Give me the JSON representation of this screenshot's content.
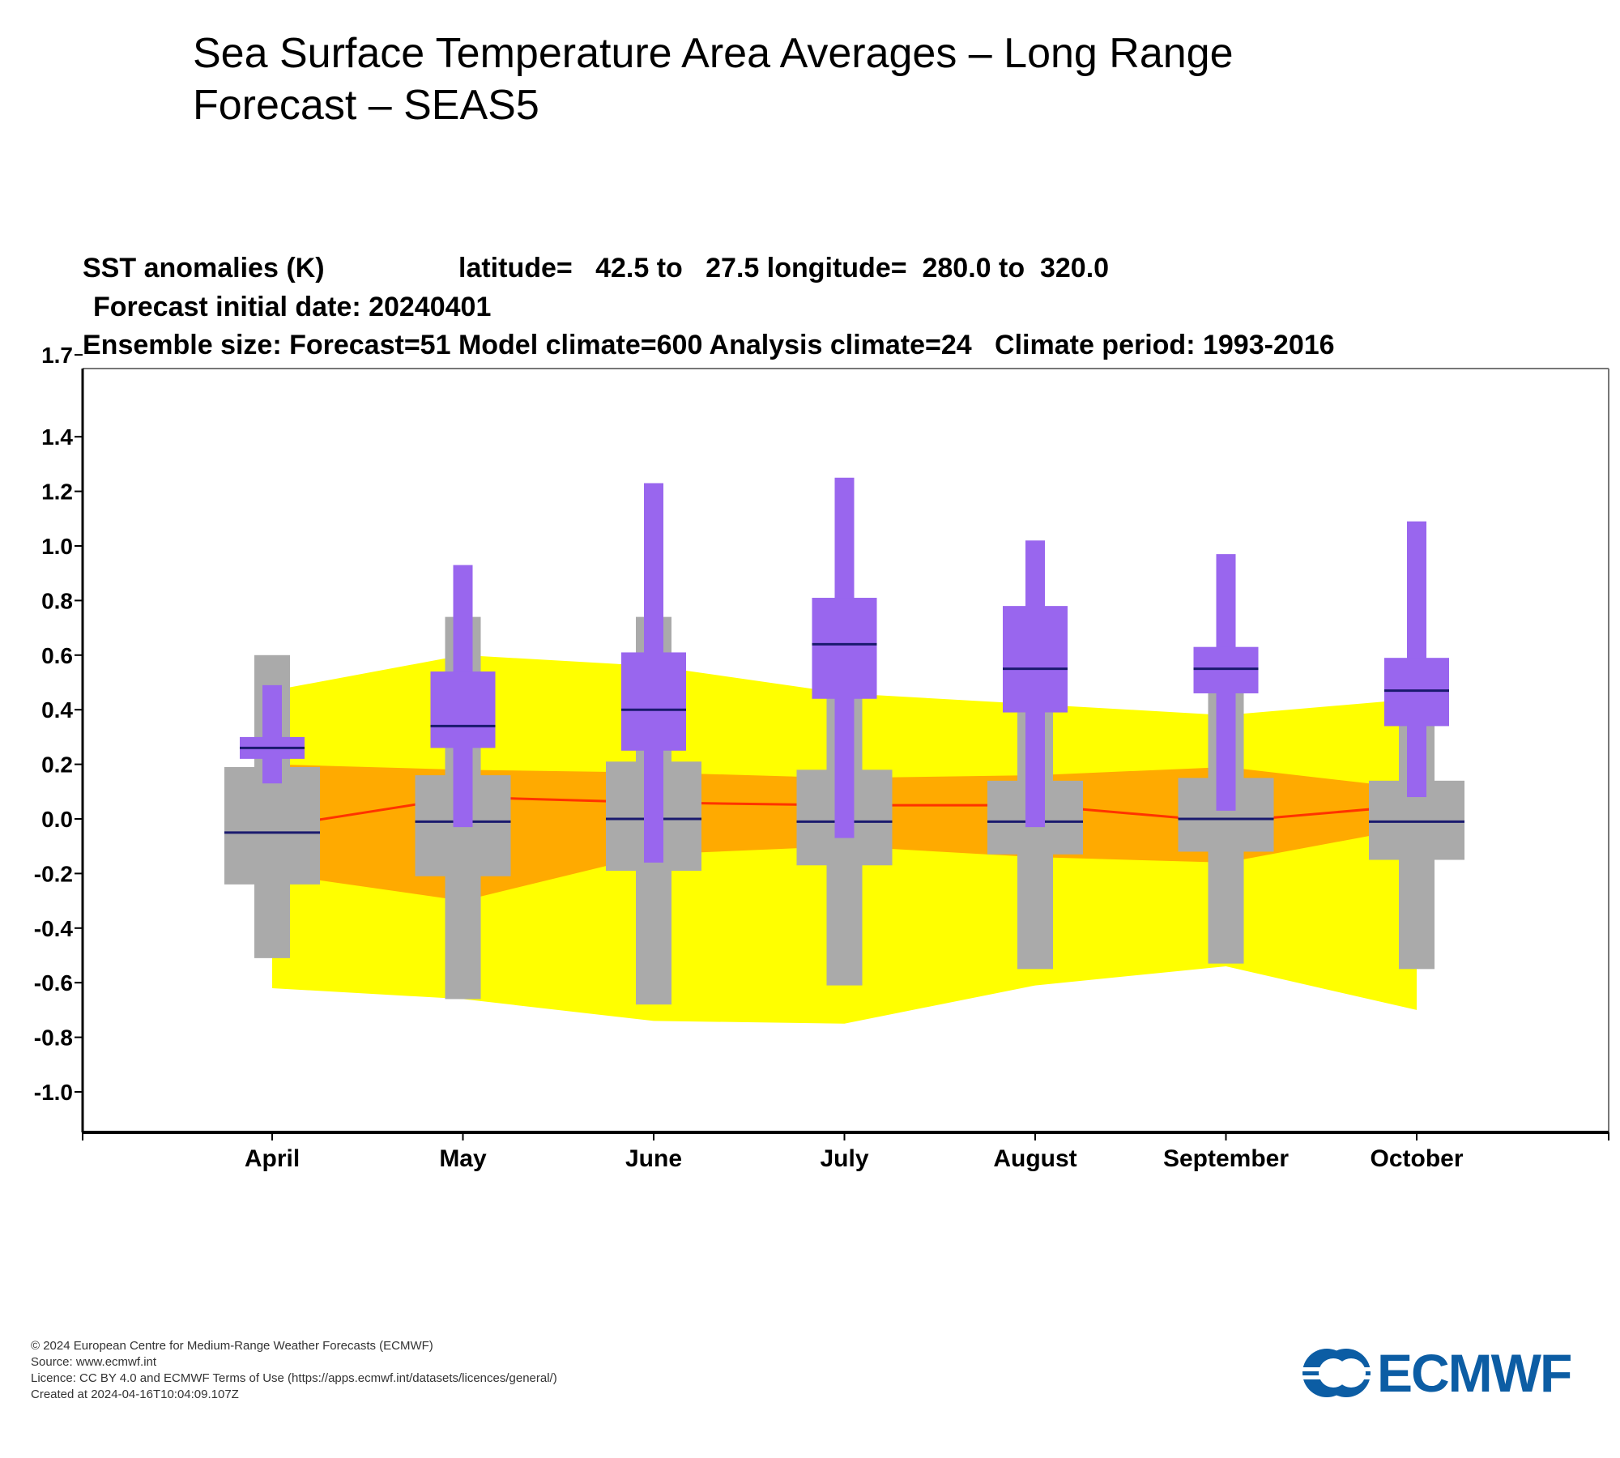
{
  "title": "Sea Surface Temperature Area Averages – Long Range Forecast – SEAS5",
  "header": {
    "line1_var": "SST anomalies (K)",
    "line1_region": "latitude=   42.5 to   27.5 longitude=  280.0 to  320.0",
    "line2": "Forecast initial date: 20240401",
    "line3": "Ensemble size: Forecast=51 Model climate=600 Analysis climate=24   Climate period: 1993-2016"
  },
  "footer": {
    "copyright": "© 2024 European Centre for Medium-Range Weather Forecasts (ECMWF)",
    "source": "Source: www.ecmwf.int",
    "licence": "Licence: CC BY 4.0 and ECMWF Terms of Use (https://apps.ecmwf.int/datasets/licences/general/)",
    "created": "Created at 2024-04-16T10:04:09.107Z"
  },
  "logo": {
    "text": "ECMWF",
    "color": "#0c5da4",
    "icon": "ecmwf-logo-icon"
  },
  "colors": {
    "forecast": "#9966ee",
    "model_climate": "#aaaaaa",
    "analysis_outer": "#ffff00",
    "analysis_inner": "#ffaa00",
    "analysis_median": "#ff3300",
    "median_line": "#1a1a6e"
  },
  "chart_data": {
    "type": "box",
    "ylabel": "",
    "xlabel": "",
    "ylim": [
      -1.15,
      1.75
    ],
    "yticks": [
      "1.7",
      "1.4",
      "1.2",
      "1.0",
      "0.8",
      "0.6",
      "0.4",
      "0.2",
      "0.0",
      "-0.2",
      "-0.4",
      "-0.6",
      "-0.8",
      "-1.0"
    ],
    "ytick_values": [
      1.7,
      1.4,
      1.2,
      1.0,
      0.8,
      0.6,
      0.4,
      0.2,
      0.0,
      -0.2,
      -0.4,
      -0.6,
      -0.8,
      -1.0
    ],
    "categories": [
      "April",
      "May",
      "June",
      "July",
      "August",
      "September",
      "October"
    ],
    "analysis_climate": {
      "outer_upper": [
        0.47,
        0.6,
        0.56,
        0.46,
        0.42,
        0.38,
        0.44
      ],
      "outer_lower": [
        -0.62,
        -0.66,
        -0.74,
        -0.75,
        -0.61,
        -0.54,
        -0.7
      ],
      "inner_upper": [
        0.2,
        0.18,
        0.17,
        0.15,
        0.16,
        0.19,
        0.11
      ],
      "inner_lower": [
        -0.2,
        -0.3,
        -0.13,
        -0.1,
        -0.14,
        -0.16,
        -0.03
      ],
      "median": [
        -0.03,
        0.08,
        0.06,
        0.05,
        0.05,
        -0.01,
        0.05
      ]
    },
    "model_climate": {
      "max": [
        0.6,
        0.74,
        0.74,
        0.51,
        0.39,
        0.47,
        0.37
      ],
      "q_upper": [
        0.19,
        0.16,
        0.21,
        0.18,
        0.14,
        0.15,
        0.14
      ],
      "median": [
        -0.05,
        -0.01,
        0.0,
        -0.01,
        -0.01,
        0.0,
        -0.01
      ],
      "q_lower": [
        -0.24,
        -0.21,
        -0.19,
        -0.17,
        -0.13,
        -0.12,
        -0.15
      ],
      "min": [
        -0.51,
        -0.66,
        -0.68,
        -0.61,
        -0.55,
        -0.53,
        -0.55
      ]
    },
    "forecast": {
      "max": [
        0.49,
        0.93,
        1.23,
        1.25,
        1.02,
        0.97,
        1.09
      ],
      "q_upper": [
        0.3,
        0.54,
        0.61,
        0.81,
        0.78,
        0.63,
        0.59
      ],
      "median": [
        0.26,
        0.34,
        0.4,
        0.64,
        0.55,
        0.55,
        0.47
      ],
      "q_lower": [
        0.22,
        0.26,
        0.25,
        0.44,
        0.39,
        0.46,
        0.34
      ],
      "min": [
        0.13,
        -0.03,
        -0.16,
        -0.07,
        -0.03,
        0.03,
        0.08
      ]
    }
  }
}
